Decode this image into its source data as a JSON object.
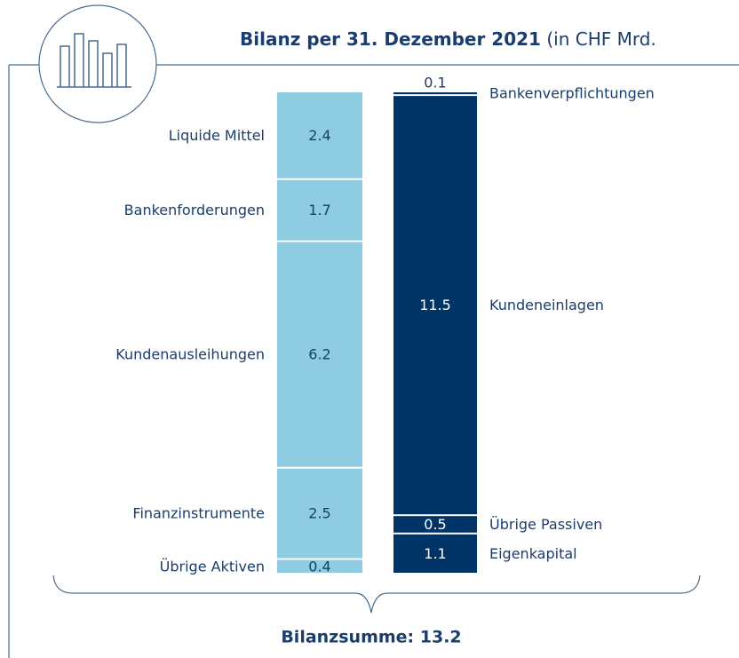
{
  "chart_data": {
    "type": "stacked-column",
    "title": "Bilanz per 31. Dezember 2021",
    "title_unit": "(in CHF Mrd.",
    "total_label": "Bilanzsumme: 13.2",
    "columns": [
      {
        "color": "#8ecde1",
        "value_color": "#1a3d6d",
        "label_side": "left",
        "segments": [
          {
            "name": "Liquide Mittel",
            "value": 2.4
          },
          {
            "name": "Bankenforderungen",
            "value": 1.7
          },
          {
            "name": "Kundenausleihungen",
            "value": 6.2
          },
          {
            "name": "Finanzinstrumente",
            "value": 2.5
          },
          {
            "name": "Übrige Aktiven",
            "value": 0.4
          }
        ]
      },
      {
        "color": "#003366",
        "value_color": "#ffffff",
        "label_side": "right",
        "segments": [
          {
            "name": "Bankenverpflichtungen",
            "value": 0.1
          },
          {
            "name": "Kundeneinlagen",
            "value": 11.5
          },
          {
            "name": "Übrige Passiven",
            "value": 0.5
          },
          {
            "name": "Eigenkapital",
            "value": 1.1
          }
        ]
      }
    ]
  }
}
